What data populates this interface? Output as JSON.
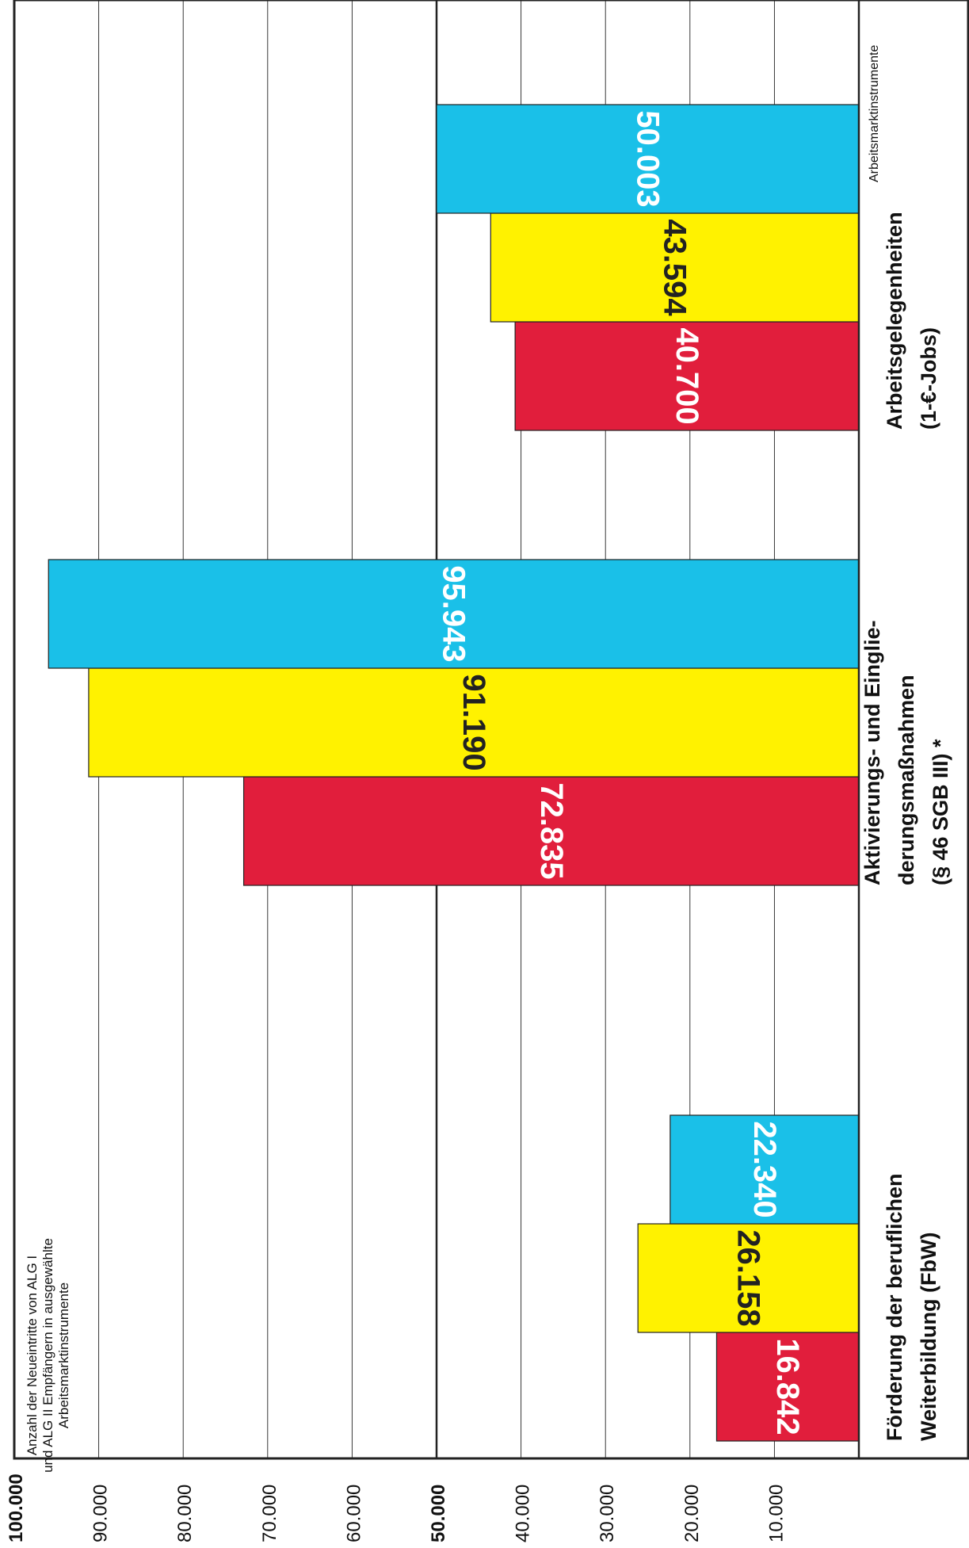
{
  "chart_data": {
    "type": "bar",
    "orientation": "vertical, page rotated 90° clockwise",
    "note": "Anzahl der Neueintritte von ALG I\nund ALG II Empfängern in ausgewählte\nArbeitsmarktinstrumente",
    "corner_label": "Arbeitsmarktinstrumente",
    "ylim": [
      0,
      100000
    ],
    "y_ticks": [
      {
        "value": 10000,
        "label": "10.000",
        "bold": false
      },
      {
        "value": 20000,
        "label": "20.000",
        "bold": false
      },
      {
        "value": 30000,
        "label": "30.000",
        "bold": false
      },
      {
        "value": 40000,
        "label": "40.000",
        "bold": false
      },
      {
        "value": 50000,
        "label": "50.000",
        "bold": true
      },
      {
        "value": 60000,
        "label": "60.000",
        "bold": false
      },
      {
        "value": 70000,
        "label": "70.000",
        "bold": false
      },
      {
        "value": 80000,
        "label": "80.000",
        "bold": false
      },
      {
        "value": 90000,
        "label": "90.000",
        "bold": false
      },
      {
        "value": 100000,
        "label": "100.000",
        "bold": true
      }
    ],
    "categories": [
      "Förderung der beruflichen\nWeiterbildung (FbW)",
      "Aktivierungs- und Einglie-\nderungsmaßnahmen\n(§ 46 SGB III) *",
      "Arbeitsgelegenheiten\n(1-€-Jobs)"
    ],
    "series": [
      {
        "color": "#e11e3c",
        "values": [
          16842,
          72835,
          40700
        ],
        "labels": [
          "16.842",
          "72.835",
          "40.700"
        ]
      },
      {
        "color": "#fff200",
        "values": [
          26158,
          91190,
          43594
        ],
        "labels": [
          "26.158",
          "91.190",
          "43.594"
        ]
      },
      {
        "color": "#1ac0e8",
        "values": [
          22340,
          95943,
          50003
        ],
        "labels": [
          "22.340",
          "95.943",
          "50.003"
        ]
      }
    ],
    "grid": true,
    "legend": "none"
  }
}
